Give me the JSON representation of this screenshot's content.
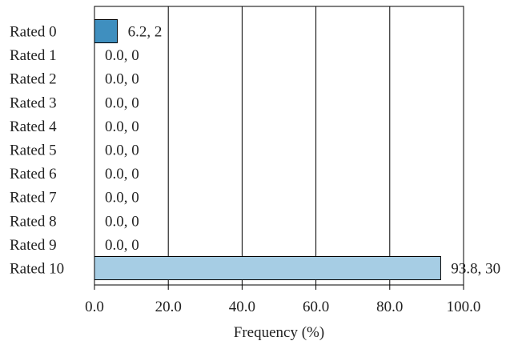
{
  "chart_data": {
    "type": "bar",
    "orientation": "horizontal",
    "categories": [
      "Rated 0",
      "Rated 1",
      "Rated 2",
      "Rated 3",
      "Rated 4",
      "Rated 5",
      "Rated 6",
      "Rated 7",
      "Rated 8",
      "Rated 9",
      "Rated 10"
    ],
    "values": [
      6.2,
      0.0,
      0.0,
      0.0,
      0.0,
      0.0,
      0.0,
      0.0,
      0.0,
      0.0,
      93.8
    ],
    "counts": [
      2,
      0,
      0,
      0,
      0,
      0,
      0,
      0,
      0,
      0,
      30
    ],
    "value_labels": [
      "6.2, 2",
      "0.0, 0",
      "0.0, 0",
      "0.0, 0",
      "0.0, 0",
      "0.0, 0",
      "0.0, 0",
      "0.0, 0",
      "0.0, 0",
      "0.0, 0",
      "93.8, 30"
    ],
    "xlabel": "Frequency (%)",
    "ylabel": "",
    "title": "",
    "xlim": [
      0,
      100
    ],
    "xticks": [
      0,
      20,
      40,
      60,
      80,
      100
    ],
    "xtick_labels": [
      "0.0",
      "20.0",
      "40.0",
      "60.0",
      "80.0",
      "100.0"
    ],
    "grid": "vertical",
    "colors": {
      "highlight": "#3f8fbf",
      "default": "#a6cde4",
      "grid": "#000000"
    },
    "bar_colors": [
      "#3f8fbf",
      "#a6cde4",
      "#a6cde4",
      "#a6cde4",
      "#a6cde4",
      "#a6cde4",
      "#a6cde4",
      "#a6cde4",
      "#a6cde4",
      "#a6cde4",
      "#a6cde4"
    ]
  }
}
